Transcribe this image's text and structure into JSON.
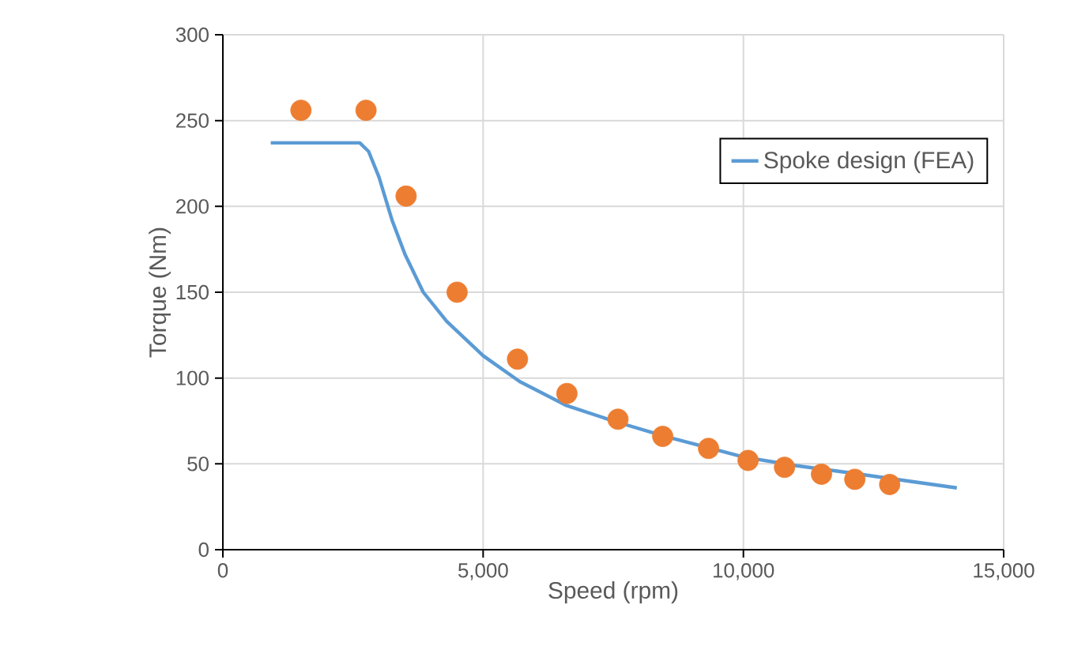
{
  "chart_data": {
    "type": "line",
    "xlabel": "Speed (rpm)",
    "ylabel": "Torque (Nm)",
    "xlim": [
      0,
      15000
    ],
    "xticks": [
      0,
      {
        "value": 5000,
        "label": "5,000"
      },
      {
        "value": 10000,
        "label": "10,000"
      },
      {
        "value": 15000,
        "label": "15,000"
      }
    ],
    "ylim": [
      0,
      300
    ],
    "yticks": [
      0,
      50,
      100,
      150,
      200,
      250,
      300
    ],
    "grid": true,
    "legend": "top right",
    "series": [
      {
        "name": "Spoke design (FEA)",
        "marker": "none",
        "color": "#5b9bd5",
        "x": [
          920,
          2630,
          2800,
          3000,
          3250,
          3500,
          3850,
          4300,
          5000,
          5700,
          6600,
          7500,
          8500,
          9500,
          10000,
          11000,
          12000,
          13400,
          14100
        ],
        "values": [
          237,
          237,
          232,
          217,
          192,
          172,
          150,
          133,
          113,
          98,
          84,
          75,
          66,
          58,
          54,
          49,
          45,
          39,
          36
        ]
      },
      {
        "type": "scatter",
        "marker": "circle",
        "color": "#ed7d31",
        "x": [
          1500,
          2750,
          3520,
          4500,
          5660,
          6610,
          7590,
          8450,
          9330,
          10090,
          10790,
          11500,
          12140,
          12810
        ],
        "values": [
          256,
          256,
          206,
          150,
          111,
          91,
          76,
          66,
          59,
          52,
          48,
          44,
          41,
          38
        ]
      }
    ]
  }
}
